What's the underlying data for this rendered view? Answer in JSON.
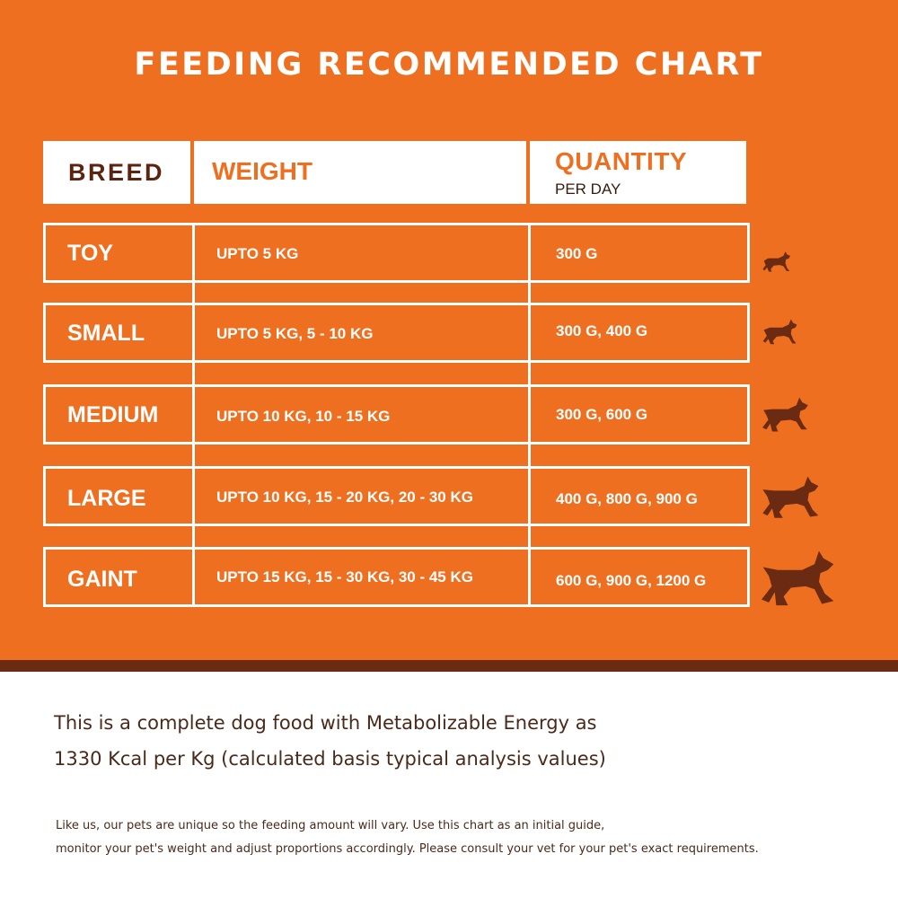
{
  "title": "FEEDING RECOMMENDED CHART",
  "header": {
    "breed": "BREED",
    "weight": "WEIGHT",
    "quantity": "QUANTITY",
    "quantity_sub": "PER DAY"
  },
  "rows": [
    {
      "breed": "TOY",
      "weight": "UPTO 5 KG",
      "quantity": "300 G",
      "icon": "toy-dog-icon"
    },
    {
      "breed": "SMALL",
      "weight": "UPTO 5 KG, 5 - 10 KG",
      "quantity": "300 G, 400 G",
      "icon": "small-dog-icon"
    },
    {
      "breed": "MEDIUM",
      "weight": "UPTO 10 KG, 10 - 15 KG",
      "quantity": "300 G, 600 G",
      "icon": "medium-dog-icon"
    },
    {
      "breed": "LARGE",
      "weight": "UPTO 10 KG, 15 - 20 KG, 20 - 30 KG",
      "quantity": "400 G, 800 G, 900 G",
      "icon": "large-dog-icon"
    },
    {
      "breed": "GAINT",
      "weight": "UPTO 15 KG, 15 - 30 KG, 30 - 45 KG",
      "quantity": "600 G, 900 G, 1200 G",
      "icon": "giant-dog-icon"
    }
  ],
  "energy_text": {
    "line1": "This is a complete dog food with Metabolizable Energy as",
    "line2": "1330 Kcal per Kg (calculated basis typical analysis values)"
  },
  "note": {
    "line1": "Like us, our pets are unique so the feeding amount will vary. Use this chart as an initial guide,",
    "line2": "monitor your pet's weight and adjust proportions accordingly. Please consult your vet for your pet's exact requirements."
  },
  "colors": {
    "orange": "#ef6f20",
    "brown": "#6b2b12",
    "white": "#ffffff"
  }
}
